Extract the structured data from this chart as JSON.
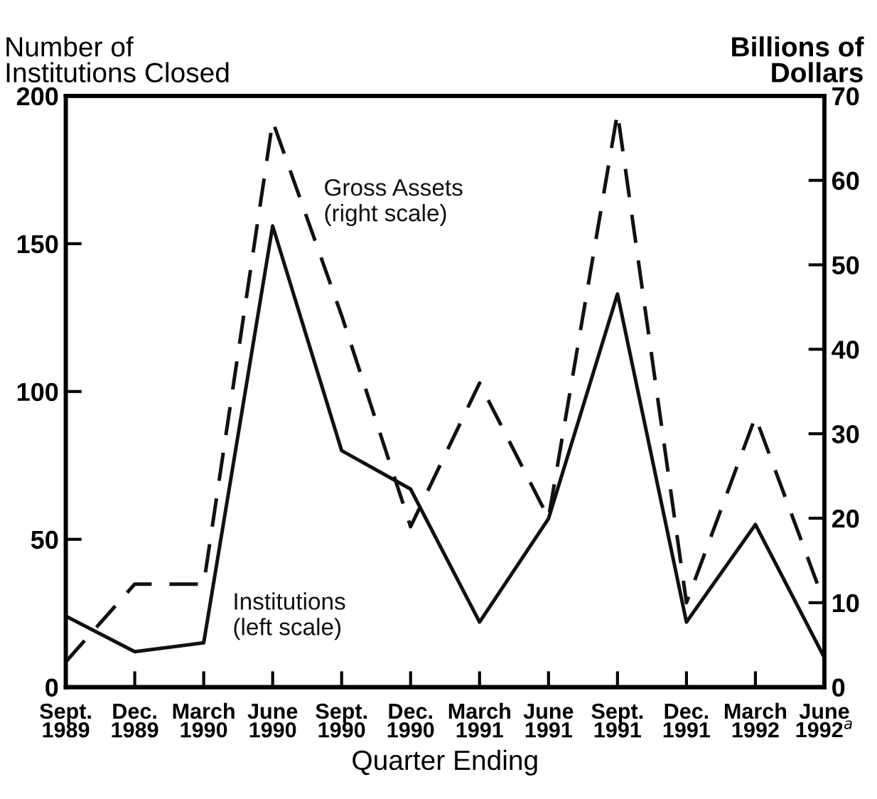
{
  "chart_data": {
    "type": "line",
    "xlabel": "Quarter Ending",
    "ylabel": "Number of\nInstitutions Closed",
    "y2label": "Billions of\nDollars",
    "categories": [
      "Sept.\n1989",
      "Dec.\n1989",
      "March\n1990",
      "June\n1990",
      "Sept.\n1990",
      "Dec.\n1990",
      "March\n1991",
      "June\n1991",
      "Sept.\n1991",
      "Dec.\n1991",
      "March\n1992",
      "June\n1992$^{a}$"
    ],
    "series": [
      {
        "name": "Institutions\n(left scale)",
        "color": "#111111",
        "line_style": "solid",
        "values": [
          24,
          12,
          15,
          156,
          80,
          67,
          22,
          57,
          133,
          22,
          55,
          10
        ]
      },
      {
        "name": "Gross Assets\n(right scale)",
        "color": "#111111",
        "line_style": "dashed",
        "axis": "y2",
        "values": [
          3,
          12.2,
          12.2,
          67,
          44,
          19,
          36,
          20,
          68,
          10,
          32,
          10
        ]
      }
    ],
    "ylim": [
      0,
      200
    ],
    "yticks": [
      0,
      50,
      100,
      150,
      200
    ],
    "y2lim": [
      0,
      70
    ],
    "y2ticks": [
      0,
      10,
      20,
      30,
      40,
      50,
      60,
      70
    ],
    "grid": false,
    "legend": false
  }
}
